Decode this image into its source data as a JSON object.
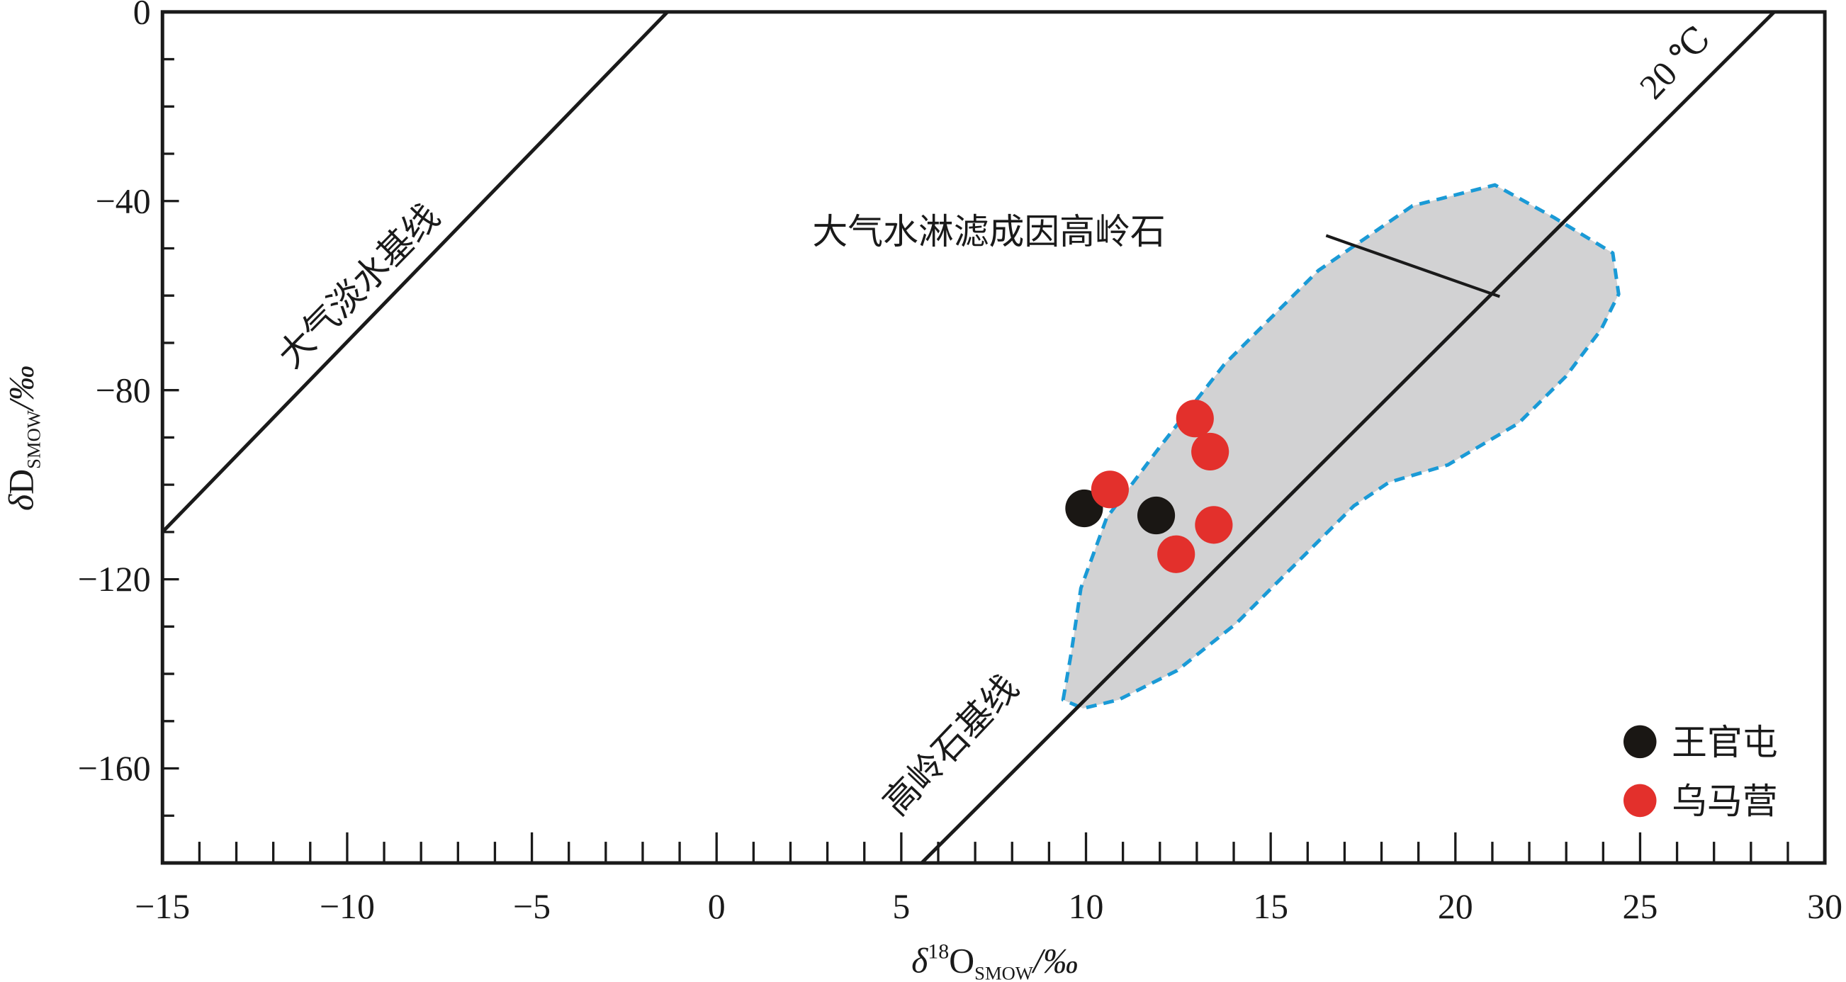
{
  "chart_data": {
    "type": "scatter",
    "xlabel": {
      "delta": "δ",
      "sup": "18",
      "main": "O",
      "sub": "SMOW",
      "unit": "/‰"
    },
    "ylabel": {
      "delta": "δ",
      "main": "D",
      "sub": "SMOW",
      "unit": "/‰"
    },
    "xlim": [
      -15,
      30
    ],
    "ylim": [
      -180,
      0
    ],
    "x_ticks": [
      -15,
      -10,
      -5,
      0,
      5,
      10,
      15,
      20,
      25,
      30
    ],
    "x_tick_labels": [
      "−15",
      "−10",
      "−5",
      "0",
      "5",
      "10",
      "15",
      "20",
      "25",
      "30"
    ],
    "y_ticks": [
      0,
      -40,
      -80,
      -120,
      -160
    ],
    "y_tick_labels": [
      "0",
      "−40",
      "−80",
      "−120",
      "−160"
    ],
    "x_minor_step": 1,
    "y_minor_step": 10,
    "grid": false,
    "legend_position": "bottom-right",
    "series": [
      {
        "name": "王官屯",
        "color": "#1a1714",
        "points": [
          [
            9.95,
            -105
          ],
          [
            11.9,
            -106.5
          ]
        ]
      },
      {
        "name": "乌马营",
        "color": "#e3302c",
        "points": [
          [
            10.65,
            -101
          ],
          [
            12.95,
            -86
          ],
          [
            13.36,
            -93
          ],
          [
            13.46,
            -108.5
          ],
          [
            12.44,
            -114.7
          ]
        ]
      }
    ],
    "lines": [
      {
        "label": "大气淡水基线",
        "from": [
          -15,
          -110
        ],
        "to": [
          -1.33,
          0
        ]
      },
      {
        "label": "高岭石基线",
        "label2": "20 ℃",
        "from": [
          5.55,
          -180
        ],
        "to": [
          28.63,
          0
        ]
      }
    ],
    "region": {
      "label": "大气水淋滤成因高岭石",
      "fill": "#d2d2d3",
      "stroke": "#1a9ad6",
      "points": [
        [
          9.38,
          -145.5
        ],
        [
          9.6,
          -135.6
        ],
        [
          9.86,
          -121.9
        ],
        [
          10.56,
          -107
        ],
        [
          12.0,
          -92
        ],
        [
          13.74,
          -74.6
        ],
        [
          16.29,
          -54.7
        ],
        [
          18.84,
          -41
        ],
        [
          21.07,
          -36.6
        ],
        [
          22.67,
          -43.5
        ],
        [
          24.26,
          -51
        ],
        [
          24.42,
          -59.7
        ],
        [
          23.94,
          -67.2
        ],
        [
          22.99,
          -77.1
        ],
        [
          21.71,
          -87
        ],
        [
          19.8,
          -95.8
        ],
        [
          18.2,
          -99.5
        ],
        [
          17.25,
          -104.5
        ],
        [
          15.66,
          -116.9
        ],
        [
          14.06,
          -129.4
        ],
        [
          12.47,
          -139.3
        ],
        [
          10.88,
          -145.5
        ],
        [
          9.92,
          -147.3
        ]
      ],
      "leader_from": [
        16.5,
        -47.3
      ],
      "leader_to": [
        21.2,
        -60.2
      ]
    }
  }
}
